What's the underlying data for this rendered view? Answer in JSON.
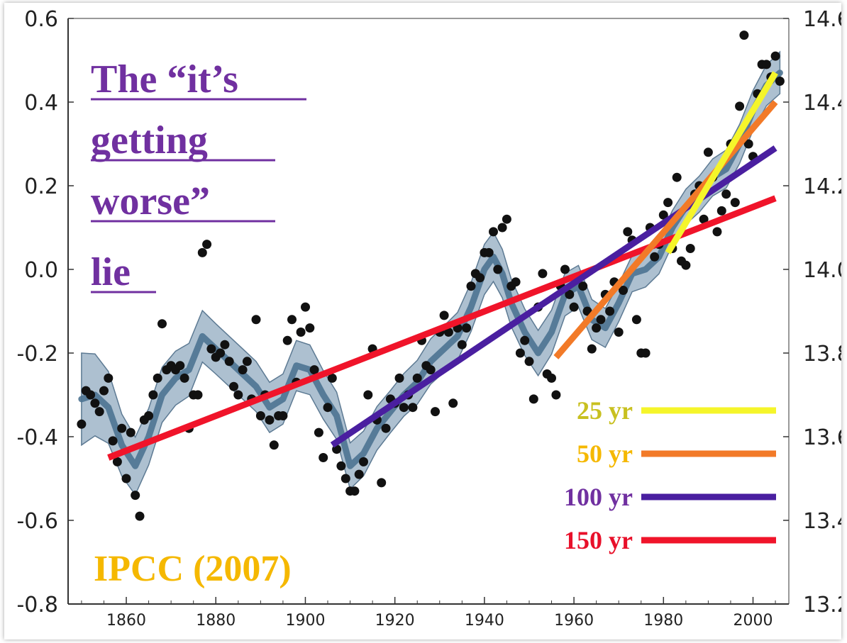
{
  "chart_data": {
    "type": "scatter",
    "title_lines": [
      "The “it’s",
      "getting",
      "worse”",
      "lie"
    ],
    "source_label": "IPCC (2007)",
    "xlabel": "",
    "ylabel": "",
    "xlim": [
      1847,
      2008
    ],
    "ylim": [
      -0.8,
      0.6
    ],
    "y2lim": [
      13.2,
      14.6
    ],
    "x_ticks": [
      "1860",
      "1880",
      "1900",
      "1920",
      "1940",
      "1960",
      "1980",
      "2000"
    ],
    "y_ticks_left": [
      "0.6",
      "0.4",
      "0.2",
      "0.0",
      "-0.2",
      "-0.4",
      "-0.6",
      "-0.8"
    ],
    "y_ticks_right": [
      "14.6",
      "14.4",
      "14.2",
      "14.0",
      "13.8",
      "13.6",
      "13.4",
      "13.2"
    ],
    "grid": false,
    "legend_position": "bottom-right",
    "colors": {
      "band": "#9fb5c8",
      "band_edge": "#5d7a93",
      "smooth": "#4d7391",
      "points": "#111111",
      "title": "#7030a0",
      "source": "#f5b800"
    },
    "points": [
      [
        1850,
        -0.37
      ],
      [
        1851,
        -0.29
      ],
      [
        1852,
        -0.3
      ],
      [
        1853,
        -0.32
      ],
      [
        1854,
        -0.34
      ],
      [
        1855,
        -0.29
      ],
      [
        1856,
        -0.26
      ],
      [
        1857,
        -0.41
      ],
      [
        1858,
        -0.46
      ],
      [
        1859,
        -0.38
      ],
      [
        1860,
        -0.5
      ],
      [
        1861,
        -0.39
      ],
      [
        1862,
        -0.54
      ],
      [
        1863,
        -0.59
      ],
      [
        1864,
        -0.36
      ],
      [
        1865,
        -0.35
      ],
      [
        1866,
        -0.3
      ],
      [
        1867,
        -0.26
      ],
      [
        1868,
        -0.13
      ],
      [
        1869,
        -0.24
      ],
      [
        1870,
        -0.23
      ],
      [
        1871,
        -0.24
      ],
      [
        1872,
        -0.23
      ],
      [
        1873,
        -0.26
      ],
      [
        1874,
        -0.38
      ],
      [
        1875,
        -0.3
      ],
      [
        1876,
        -0.3
      ],
      [
        1877,
        0.04
      ],
      [
        1878,
        0.06
      ],
      [
        1879,
        -0.19
      ],
      [
        1880,
        -0.21
      ],
      [
        1881,
        -0.2
      ],
      [
        1882,
        -0.18
      ],
      [
        1883,
        -0.22
      ],
      [
        1884,
        -0.28
      ],
      [
        1885,
        -0.3
      ],
      [
        1886,
        -0.24
      ],
      [
        1887,
        -0.22
      ],
      [
        1888,
        -0.31
      ],
      [
        1889,
        -0.12
      ],
      [
        1890,
        -0.35
      ],
      [
        1891,
        -0.3
      ],
      [
        1892,
        -0.36
      ],
      [
        1893,
        -0.42
      ],
      [
        1894,
        -0.35
      ],
      [
        1895,
        -0.35
      ],
      [
        1896,
        -0.17
      ],
      [
        1897,
        -0.12
      ],
      [
        1898,
        -0.27
      ],
      [
        1899,
        -0.15
      ],
      [
        1900,
        -0.09
      ],
      [
        1901,
        -0.14
      ],
      [
        1902,
        -0.24
      ],
      [
        1903,
        -0.39
      ],
      [
        1904,
        -0.45
      ],
      [
        1905,
        -0.33
      ],
      [
        1906,
        -0.26
      ],
      [
        1907,
        -0.43
      ],
      [
        1908,
        -0.47
      ],
      [
        1909,
        -0.5
      ],
      [
        1910,
        -0.53
      ],
      [
        1911,
        -0.53
      ],
      [
        1912,
        -0.49
      ],
      [
        1913,
        -0.46
      ],
      [
        1914,
        -0.3
      ],
      [
        1915,
        -0.19
      ],
      [
        1916,
        -0.36
      ],
      [
        1917,
        -0.51
      ],
      [
        1918,
        -0.38
      ],
      [
        1919,
        -0.31
      ],
      [
        1920,
        -0.32
      ],
      [
        1921,
        -0.26
      ],
      [
        1922,
        -0.33
      ],
      [
        1923,
        -0.3
      ],
      [
        1924,
        -0.33
      ],
      [
        1925,
        -0.26
      ],
      [
        1926,
        -0.17
      ],
      [
        1927,
        -0.23
      ],
      [
        1928,
        -0.24
      ],
      [
        1929,
        -0.34
      ],
      [
        1930,
        -0.15
      ],
      [
        1931,
        -0.11
      ],
      [
        1932,
        -0.15
      ],
      [
        1933,
        -0.32
      ],
      [
        1934,
        -0.14
      ],
      [
        1935,
        -0.18
      ],
      [
        1936,
        -0.14
      ],
      [
        1937,
        -0.04
      ],
      [
        1938,
        -0.01
      ],
      [
        1939,
        -0.02
      ],
      [
        1940,
        0.04
      ],
      [
        1941,
        0.04
      ],
      [
        1942,
        0.09
      ],
      [
        1943,
        0.0
      ],
      [
        1944,
        0.1
      ],
      [
        1945,
        0.12
      ],
      [
        1946,
        -0.04
      ],
      [
        1947,
        -0.03
      ],
      [
        1948,
        -0.2
      ],
      [
        1949,
        -0.17
      ],
      [
        1950,
        -0.22
      ],
      [
        1951,
        -0.31
      ],
      [
        1952,
        -0.09
      ],
      [
        1953,
        -0.01
      ],
      [
        1954,
        -0.25
      ],
      [
        1955,
        -0.26
      ],
      [
        1956,
        -0.3
      ],
      [
        1957,
        -0.04
      ],
      [
        1958,
        0.0
      ],
      [
        1959,
        -0.06
      ],
      [
        1960,
        -0.09
      ],
      [
        1961,
        -0.02
      ],
      [
        1962,
        -0.04
      ],
      [
        1963,
        -0.1
      ],
      [
        1964,
        -0.19
      ],
      [
        1965,
        -0.14
      ],
      [
        1966,
        -0.12
      ],
      [
        1967,
        -0.06
      ],
      [
        1968,
        -0.1
      ],
      [
        1969,
        -0.03
      ],
      [
        1970,
        -0.15
      ],
      [
        1971,
        -0.05
      ],
      [
        1972,
        0.09
      ],
      [
        1973,
        0.07
      ],
      [
        1974,
        -0.12
      ],
      [
        1975,
        -0.2
      ],
      [
        1976,
        -0.2
      ],
      [
        1977,
        0.1
      ],
      [
        1978,
        0.03
      ],
      [
        1979,
        0.06
      ],
      [
        1980,
        0.13
      ],
      [
        1981,
        0.16
      ],
      [
        1982,
        0.05
      ],
      [
        1983,
        0.22
      ],
      [
        1984,
        0.02
      ],
      [
        1985,
        0.01
      ],
      [
        1986,
        0.05
      ],
      [
        1987,
        0.18
      ],
      [
        1988,
        0.2
      ],
      [
        1989,
        0.12
      ],
      [
        1990,
        0.28
      ],
      [
        1991,
        0.22
      ],
      [
        1992,
        0.09
      ],
      [
        1993,
        0.14
      ],
      [
        1994,
        0.18
      ],
      [
        1995,
        0.3
      ],
      [
        1996,
        0.16
      ],
      [
        1997,
        0.39
      ],
      [
        1998,
        0.56
      ],
      [
        1999,
        0.3
      ],
      [
        2000,
        0.27
      ],
      [
        2001,
        0.42
      ],
      [
        2002,
        0.49
      ],
      [
        2003,
        0.49
      ],
      [
        2004,
        0.46
      ],
      [
        2005,
        0.51
      ],
      [
        2006,
        0.45
      ]
    ],
    "smooth_series": [
      [
        1850,
        -0.31
      ],
      [
        1853,
        -0.3
      ],
      [
        1856,
        -0.33
      ],
      [
        1859,
        -0.42
      ],
      [
        1862,
        -0.47
      ],
      [
        1865,
        -0.4
      ],
      [
        1868,
        -0.3
      ],
      [
        1871,
        -0.26
      ],
      [
        1874,
        -0.24
      ],
      [
        1877,
        -0.16
      ],
      [
        1880,
        -0.19
      ],
      [
        1883,
        -0.22
      ],
      [
        1886,
        -0.25
      ],
      [
        1889,
        -0.28
      ],
      [
        1892,
        -0.33
      ],
      [
        1895,
        -0.31
      ],
      [
        1898,
        -0.23
      ],
      [
        1901,
        -0.24
      ],
      [
        1904,
        -0.3
      ],
      [
        1907,
        -0.35
      ],
      [
        1910,
        -0.47
      ],
      [
        1913,
        -0.44
      ],
      [
        1916,
        -0.38
      ],
      [
        1919,
        -0.34
      ],
      [
        1922,
        -0.3
      ],
      [
        1925,
        -0.27
      ],
      [
        1928,
        -0.22
      ],
      [
        1931,
        -0.19
      ],
      [
        1934,
        -0.16
      ],
      [
        1937,
        -0.09
      ],
      [
        1940,
        0.0
      ],
      [
        1942,
        0.03
      ],
      [
        1944,
        -0.01
      ],
      [
        1946,
        -0.08
      ],
      [
        1949,
        -0.15
      ],
      [
        1952,
        -0.2
      ],
      [
        1955,
        -0.15
      ],
      [
        1958,
        -0.06
      ],
      [
        1961,
        -0.04
      ],
      [
        1964,
        -0.12
      ],
      [
        1967,
        -0.14
      ],
      [
        1970,
        -0.08
      ],
      [
        1973,
        -0.01
      ],
      [
        1976,
        0.0
      ],
      [
        1979,
        0.03
      ],
      [
        1982,
        0.1
      ],
      [
        1985,
        0.15
      ],
      [
        1988,
        0.18
      ],
      [
        1991,
        0.22
      ],
      [
        1994,
        0.24
      ],
      [
        1997,
        0.3
      ],
      [
        2000,
        0.38
      ],
      [
        2003,
        0.44
      ],
      [
        2006,
        0.47
      ]
    ],
    "band_halfwidth": [
      [
        1850,
        0.11
      ],
      [
        1860,
        0.07
      ],
      [
        1880,
        0.06
      ],
      [
        1900,
        0.06
      ],
      [
        1920,
        0.05
      ],
      [
        1940,
        0.06
      ],
      [
        1960,
        0.05
      ],
      [
        1980,
        0.04
      ],
      [
        2006,
        0.05
      ]
    ],
    "trend_lines": [
      {
        "name": "25 yr",
        "color": "#f5f52a",
        "label_color": "#c8c020",
        "x": [
          1981,
          2005
        ],
        "y": [
          0.04,
          0.47
        ]
      },
      {
        "name": "50 yr",
        "color": "#f27a28",
        "label_color": "#f5b800",
        "x": [
          1956,
          2005
        ],
        "y": [
          -0.21,
          0.4
        ]
      },
      {
        "name": "100 yr",
        "color": "#4a1fa0",
        "label_color": "#7030a0",
        "x": [
          1906,
          2005
        ],
        "y": [
          -0.42,
          0.29
        ]
      },
      {
        "name": "150 yr",
        "color": "#f0142a",
        "label_color": "#e8102a",
        "x": [
          1856,
          2005
        ],
        "y": [
          -0.45,
          0.17
        ]
      }
    ]
  }
}
